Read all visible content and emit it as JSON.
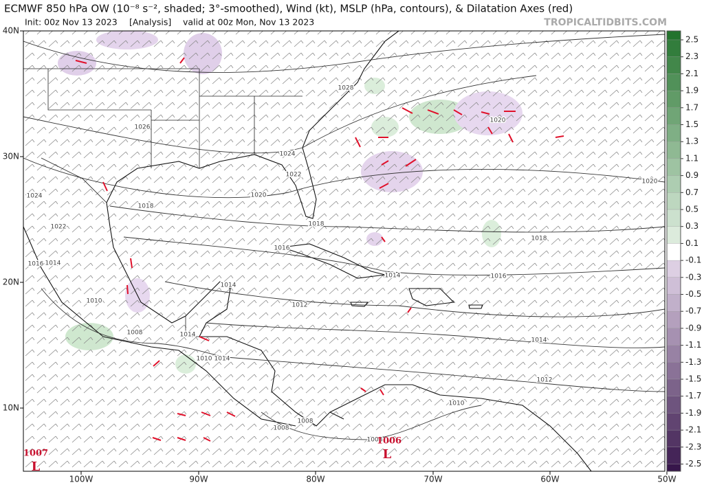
{
  "header": {
    "title": "ECMWF 850 hPa OW (10⁻⁸ s⁻², shaded; 3°-smoothed), Wind (kt), MSLP (hPa, contours), & Dilatation Axes (red)",
    "init": "Init: 00z Nov 13 2023",
    "mode": "[Analysis]",
    "valid": "valid at 00z Mon, Nov 13 2023",
    "watermark": "TROPICALTIDBITS.COM"
  },
  "axes": {
    "lat_labels": [
      "40N",
      "30N",
      "20N",
      "10N"
    ],
    "lon_labels": [
      "100W",
      "90W",
      "80W",
      "70W",
      "60W",
      "50W"
    ]
  },
  "colorbar": {
    "ticks": [
      2.5,
      2.3,
      2.1,
      1.9,
      1.7,
      1.5,
      1.3,
      1.1,
      0.9,
      0.7,
      0.5,
      0.3,
      0.1,
      -0.1,
      -0.3,
      -0.5,
      -0.7,
      -0.9,
      -1.1,
      -1.3,
      -1.5,
      -1.7,
      -1.9,
      -2.1,
      -2.3,
      -2.5
    ]
  },
  "contour_labels": [
    "1028",
    "1026",
    "1024",
    "1022",
    "1020",
    "1018",
    "1018",
    "1016",
    "1014",
    "1016",
    "1018",
    "1020",
    "1020",
    "1024",
    "1022",
    "1016",
    "1014",
    "1014",
    "1012",
    "1010",
    "1008",
    "1014",
    "1010",
    "1014",
    "1014",
    "1012",
    "1010",
    "1008",
    "1008",
    "1008"
  ],
  "lows": [
    {
      "pressure": "1007",
      "symbol": "L"
    },
    {
      "pressure": "1006",
      "symbol": "L"
    }
  ]
}
